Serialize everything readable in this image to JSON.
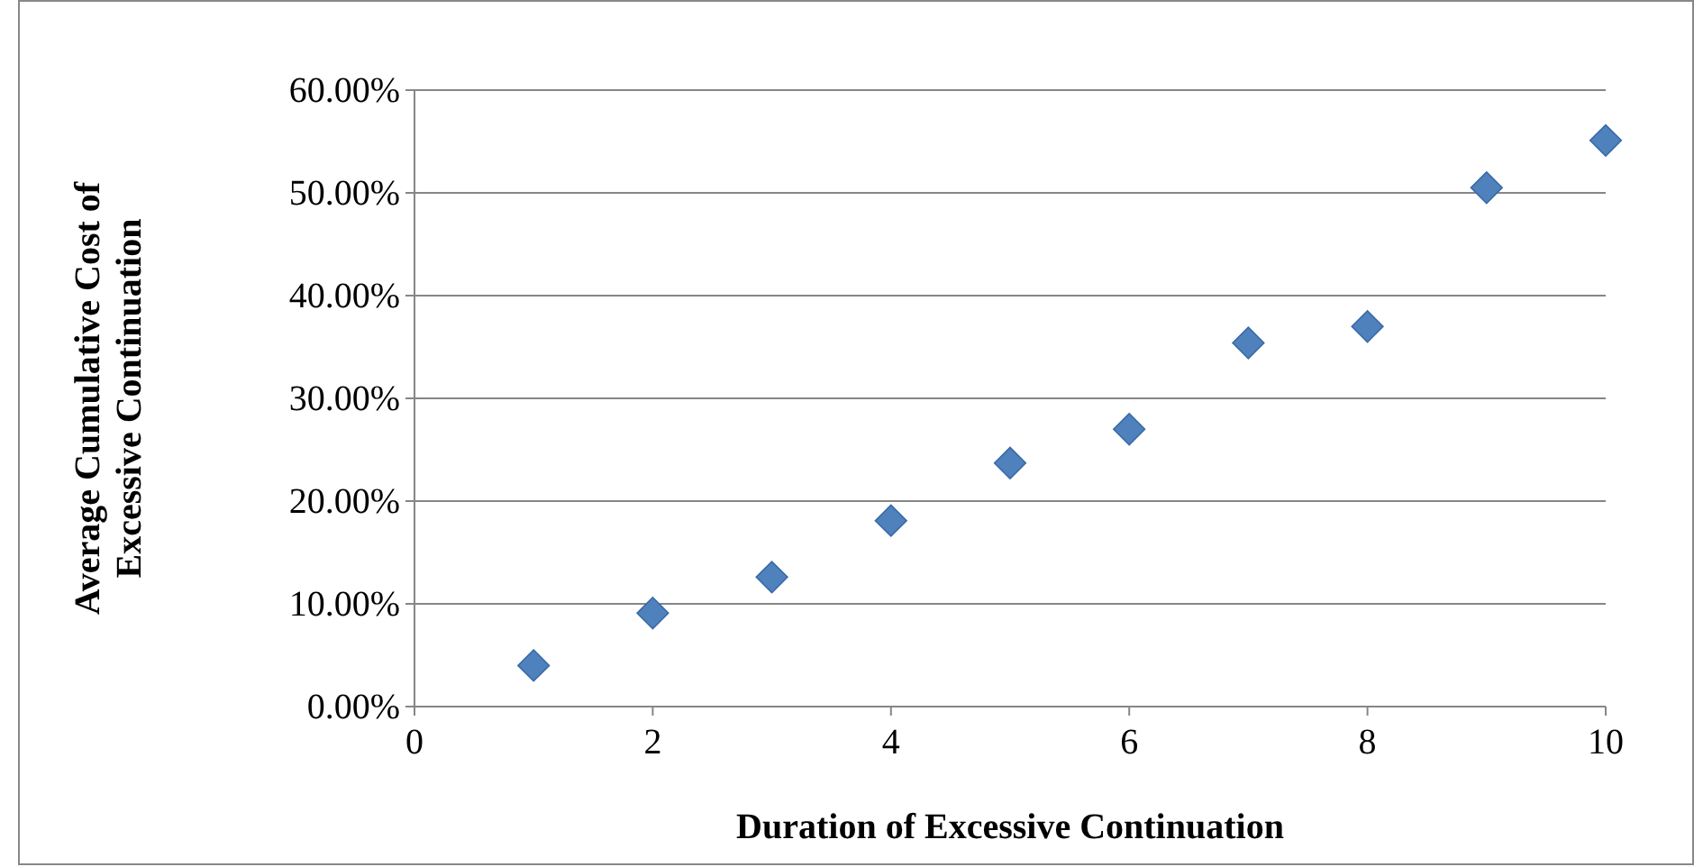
{
  "chart_data": {
    "type": "scatter",
    "xlabel": "Duration of Excessive Continuation",
    "ylabel": "Average Cumulative Cost of Excessive Continuation",
    "x": [
      1,
      2,
      3,
      4,
      5,
      6,
      7,
      8,
      9,
      10
    ],
    "series": [
      {
        "color": "#4f81bd",
        "values": [
          4.0,
          9.1,
          12.6,
          18.1,
          23.7,
          27.0,
          35.4,
          37.0,
          50.5,
          55.1
        ]
      }
    ],
    "xlim": [
      0,
      10
    ],
    "xticks": [
      0,
      2,
      4,
      6,
      8,
      10
    ],
    "ylim": [
      0,
      60
    ],
    "yticks": [
      {
        "value": 0,
        "label": "0.00%"
      },
      {
        "value": 10,
        "label": "10.00%"
      },
      {
        "value": 20,
        "label": "20.00%"
      },
      {
        "value": 30,
        "label": "30.00%"
      },
      {
        "value": 40,
        "label": "40.00%"
      },
      {
        "value": 50,
        "label": "50.00%"
      },
      {
        "value": 60,
        "label": "60.00%"
      }
    ],
    "grid": "y",
    "marker": "diamond"
  }
}
